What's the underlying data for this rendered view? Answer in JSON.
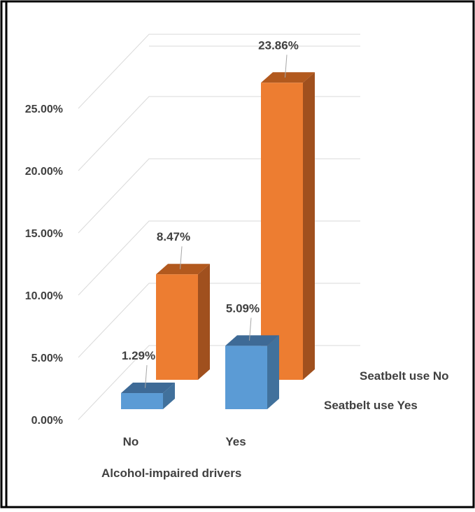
{
  "chart_data": {
    "type": "bar",
    "projection": "3d",
    "title": "",
    "xlabel": "Alcohol-impaired drivers",
    "ylabel": "",
    "categories": [
      "No",
      "Yes"
    ],
    "ylim": [
      0,
      0.25
    ],
    "yticks": [
      0,
      0.05,
      0.1,
      0.15,
      0.2,
      0.25
    ],
    "ytick_labels": [
      "0.00%",
      "5.00%",
      "10.00%",
      "15.00%",
      "20.00%",
      "25.00%"
    ],
    "grid": true,
    "series": [
      {
        "name": "Seatbelt use Yes",
        "values": [
          0.0129,
          0.0509
        ],
        "labels": [
          "1.29%",
          "5.09%"
        ],
        "color": "#5B9BD5",
        "side_color": "#41719C",
        "top_color": "#3E6A96"
      },
      {
        "name": "Seatbelt use No",
        "values": [
          0.0847,
          0.2386
        ],
        "labels": [
          "8.47%",
          "23.86%"
        ],
        "color": "#ED7D31",
        "side_color": "#A0501E",
        "top_color": "#B2591E"
      }
    ]
  }
}
